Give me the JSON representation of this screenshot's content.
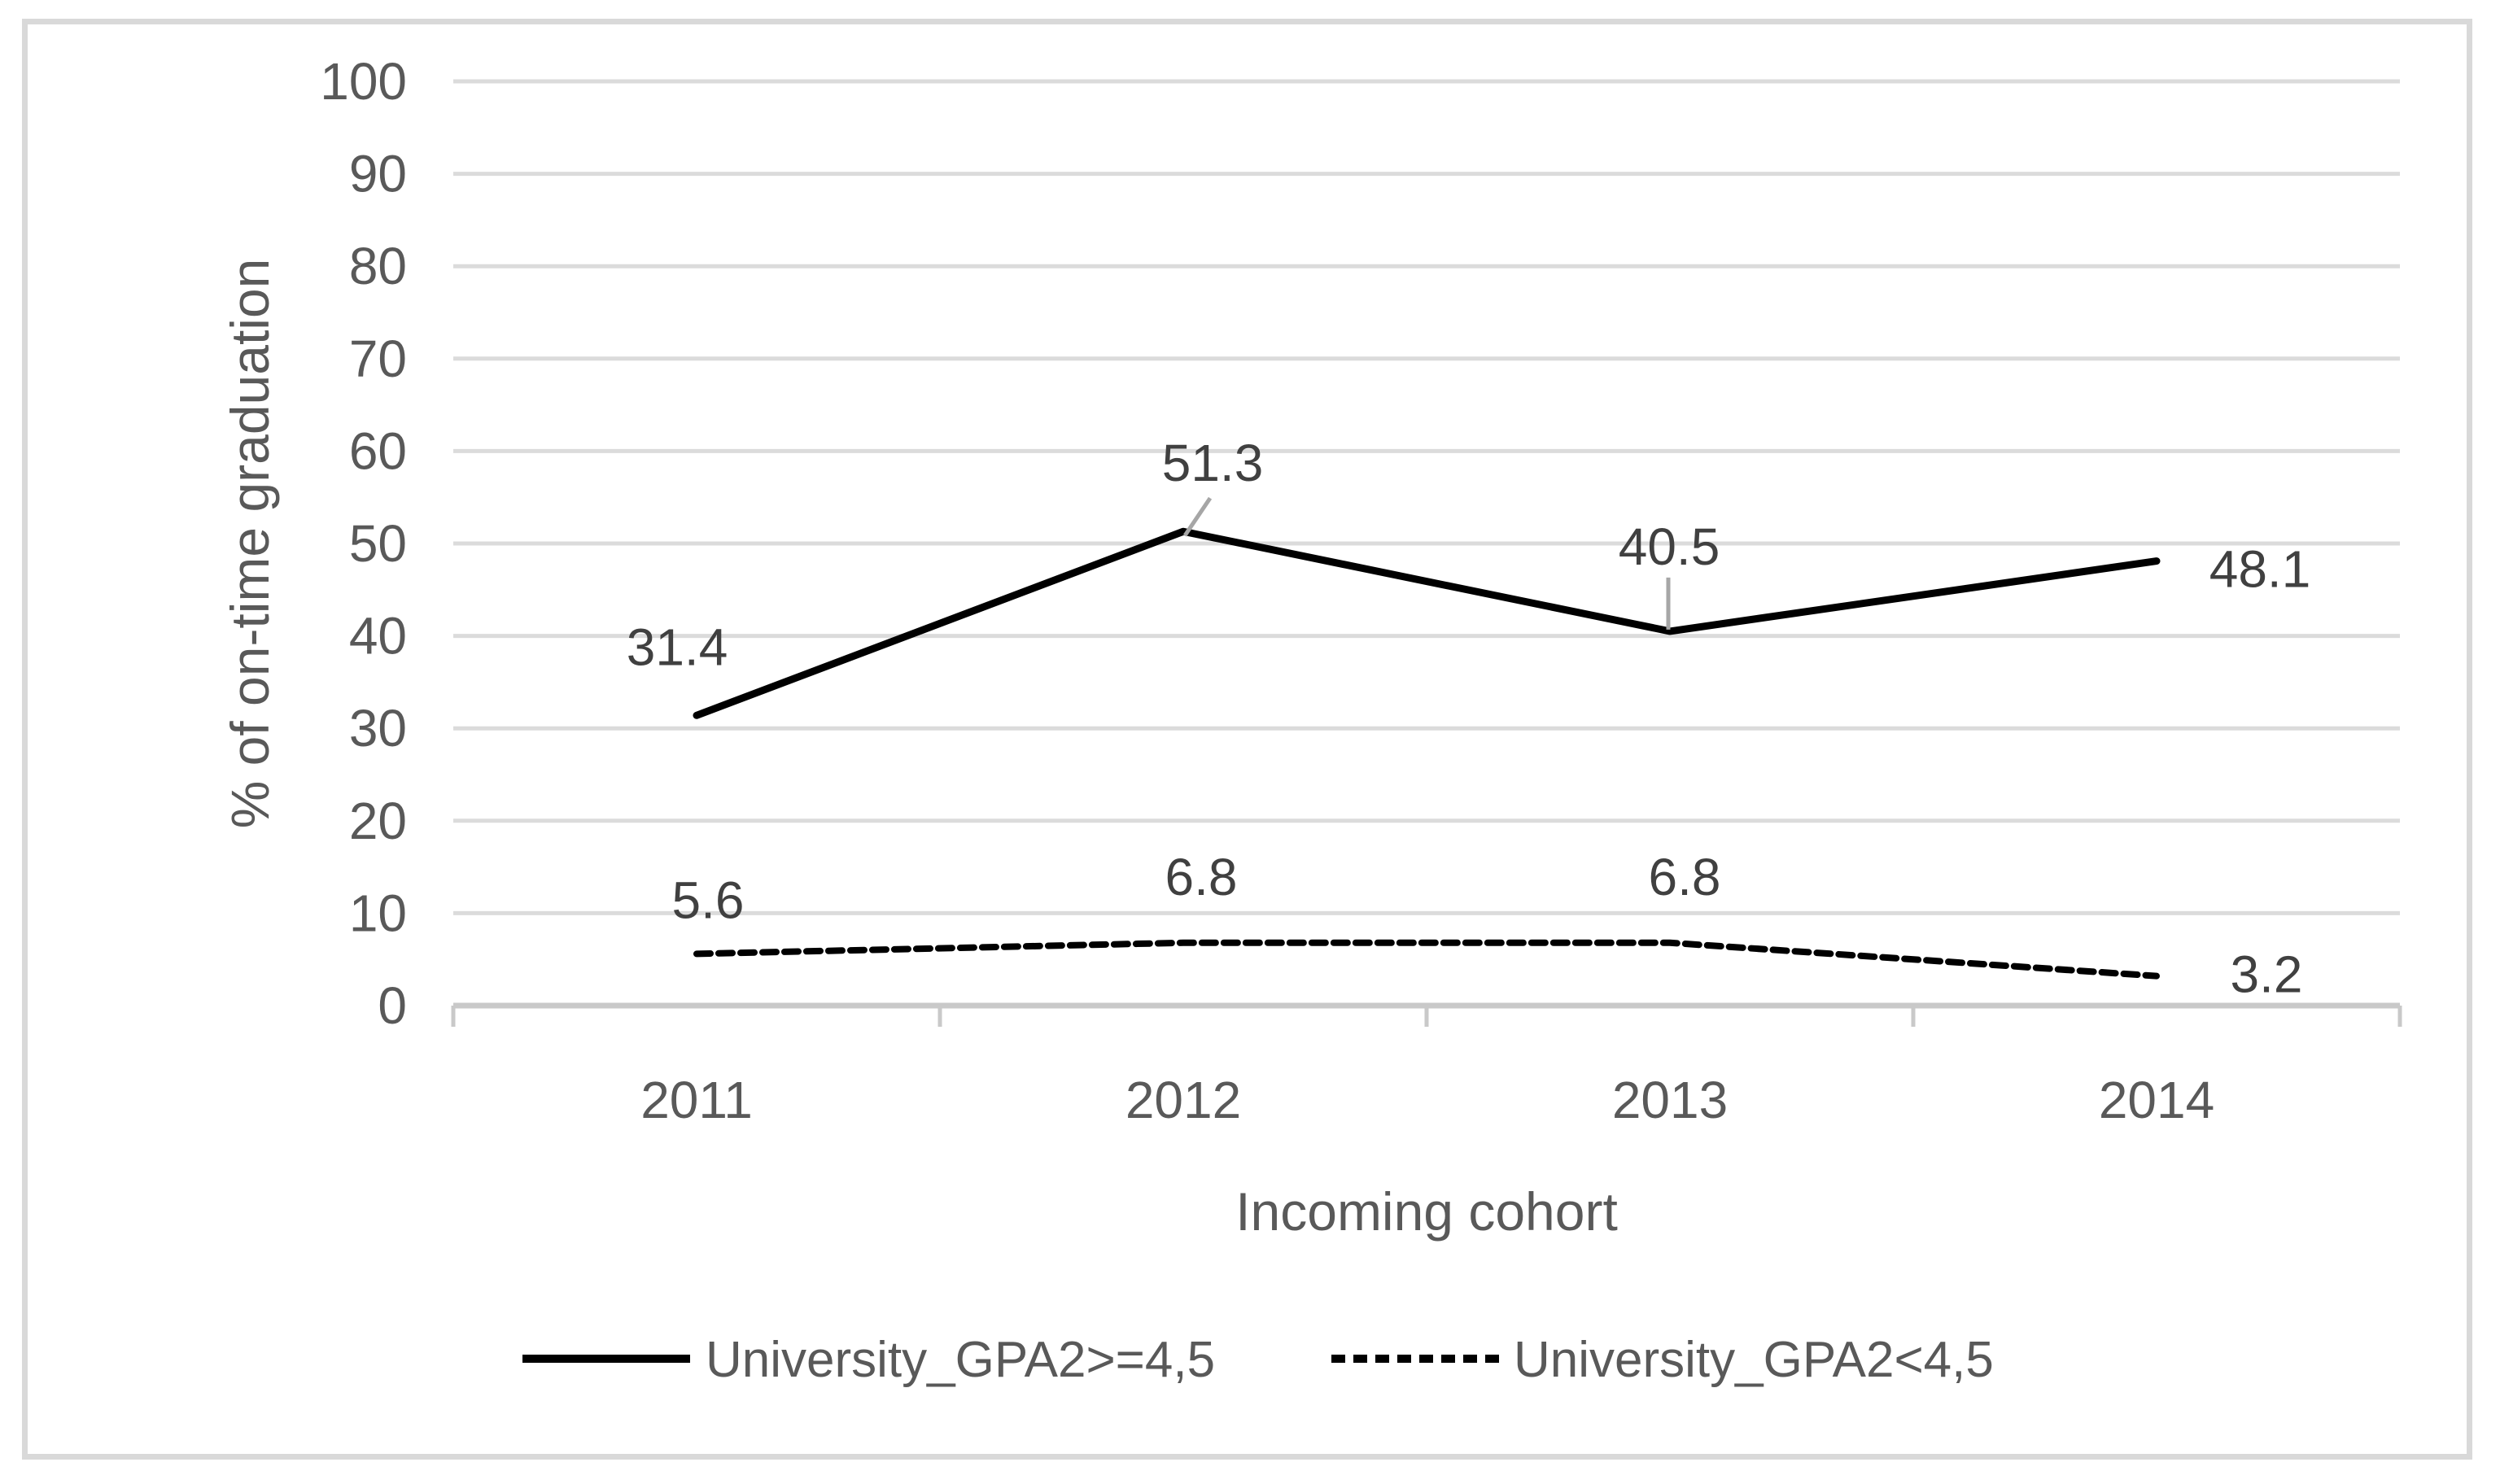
{
  "figure": {
    "background_color": "#FFFFFF",
    "border_color": "#D9D9D9"
  },
  "chart_data": {
    "type": "line",
    "title": "",
    "xlabel": "Incoming cohort",
    "ylabel": "% of on-time graduation",
    "categories": [
      "2011",
      "2012",
      "2013",
      "2014"
    ],
    "series": [
      {
        "name": "University_GPA2>=4,5",
        "style": "solid",
        "color": "#000000",
        "values": [
          31.4,
          51.3,
          40.5,
          48.1
        ]
      },
      {
        "name": "University_GPA2<4,5",
        "style": "dashed",
        "color": "#000000",
        "values": [
          5.6,
          6.8,
          6.8,
          3.2
        ]
      }
    ],
    "ylim": [
      0,
      100
    ],
    "y_ticks": [
      0,
      10,
      20,
      30,
      40,
      50,
      60,
      70,
      80,
      90,
      100
    ],
    "grid": "horizontal",
    "legend_position": "bottom",
    "data_labels_shown": true,
    "colors": {
      "gridline": "#DBDBDB",
      "axis_line": "#C9C9C9",
      "axis_text": "#595959",
      "data_label_text": "#404040",
      "leader_line": "#A6A6A6"
    }
  }
}
